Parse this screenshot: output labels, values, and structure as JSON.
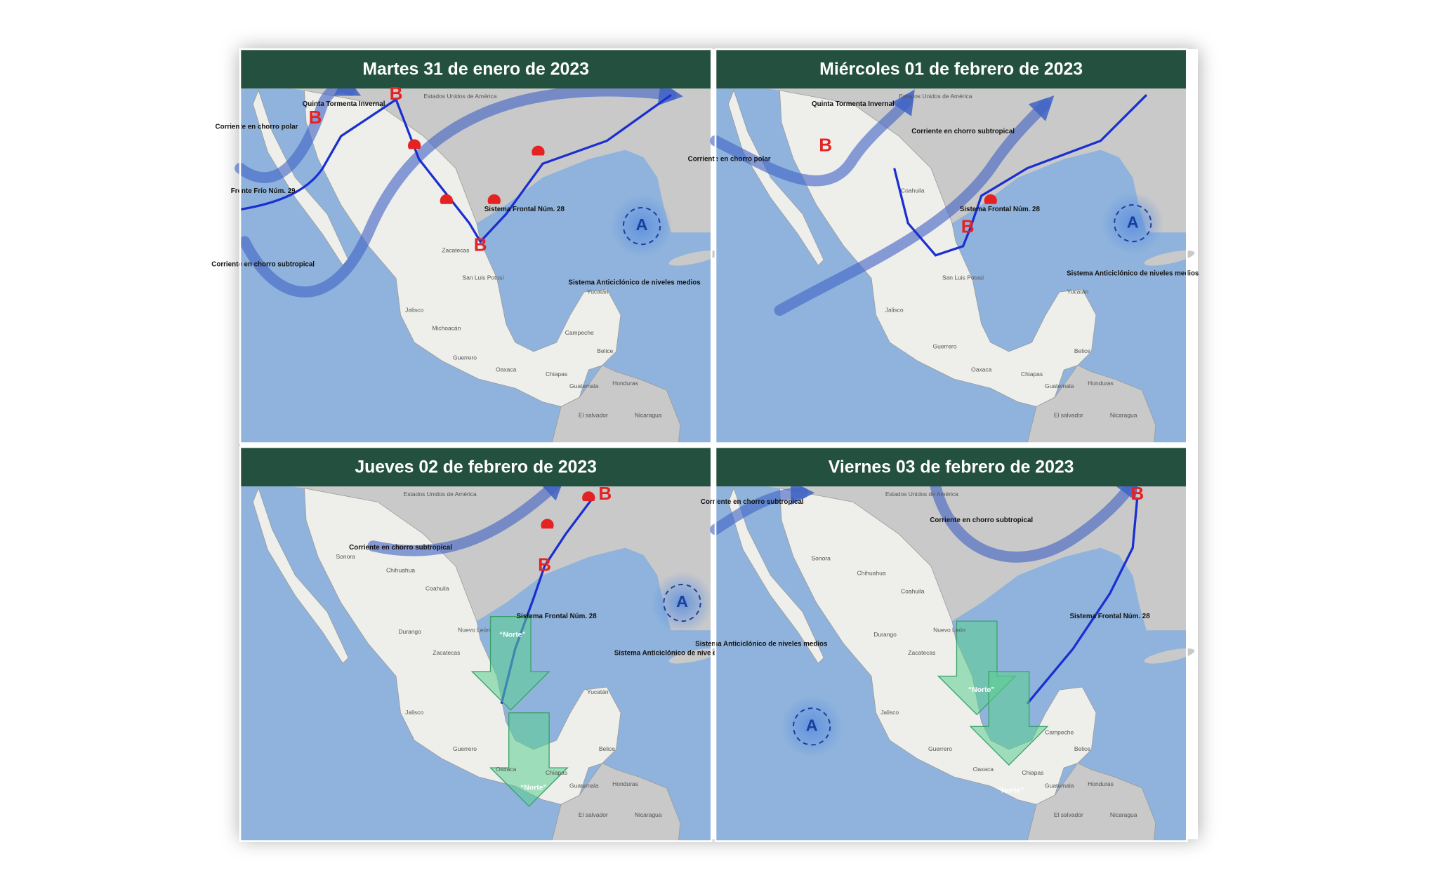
{
  "panels": [
    {
      "title": "Martes 31 de enero de 2023",
      "labels": [
        "Quinta Tormenta Invernal",
        "Corriente en chorro polar",
        "Frente Frío Núm. 29",
        "Corriente en chorro subtropical",
        "Sistema Frontal Núm. 28",
        "Sistema Anticiclónico de niveles medios",
        "B",
        "B",
        "B",
        "A",
        "Estados Unidos de América",
        "Zacatecas",
        "San Luis Potosí",
        "Jalisco",
        "Michoacán",
        "Guerrero",
        "Oaxaca",
        "Chiapas",
        "Campeche",
        "Yucatán",
        "Belice",
        "Guatemala",
        "Honduras",
        "El salvador",
        "Nicaragua"
      ]
    },
    {
      "title": "Miércoles 01 de febrero de 2023",
      "labels": [
        "Quinta Tormenta Invernal",
        "Corriente en chorro polar",
        "Corriente en chorro subtropical",
        "Sistema Frontal Núm. 28",
        "Sistema Anticiclónico de niveles medios",
        "B",
        "B",
        "A",
        "Estados Unidos de América",
        "Coahuila",
        "San Luis Potosí",
        "Jalisco",
        "Guerrero",
        "Oaxaca",
        "Chiapas",
        "Yucatán",
        "Belice",
        "Guatemala",
        "Honduras",
        "El salvador",
        "Nicaragua"
      ]
    },
    {
      "title": "Jueves 02 de febrero de 2023",
      "labels": [
        "Corriente en chorro subtropical",
        "Sistema Frontal Núm. 28",
        "Sistema Anticiclónico de niveles medios",
        "B",
        "B",
        "A",
        "“Norte”",
        "“Norte”",
        "Estados Unidos de América",
        "Sonora",
        "Chihuahua",
        "Coahuila",
        "Durango",
        "Nuevo León",
        "Zacatecas",
        "Jalisco",
        "Guerrero",
        "Oaxaca",
        "Chiapas",
        "Yucatán",
        "Belice",
        "Guatemala",
        "Honduras",
        "El salvador",
        "Nicaragua"
      ]
    },
    {
      "title": "Viernes 03 de febrero de 2023",
      "labels": [
        "Corriente en chorro subtropical",
        "Corriente en chorro subtropical",
        "Sistema Frontal Núm. 28",
        "Sistema Anticiclónico de niveles medios",
        "B",
        "A",
        "“Norte”",
        "“Norte”",
        "Estados Unidos de América",
        "Sonora",
        "Chihuahua",
        "Coahuila",
        "Durango",
        "Nuevo León",
        "Zacatecas",
        "Jalisco",
        "Guerrero",
        "Oaxaca",
        "Chiapas",
        "Campeche",
        "Belice",
        "Guatemala",
        "Honduras",
        "El salvador",
        "Nicaragua"
      ]
    }
  ]
}
